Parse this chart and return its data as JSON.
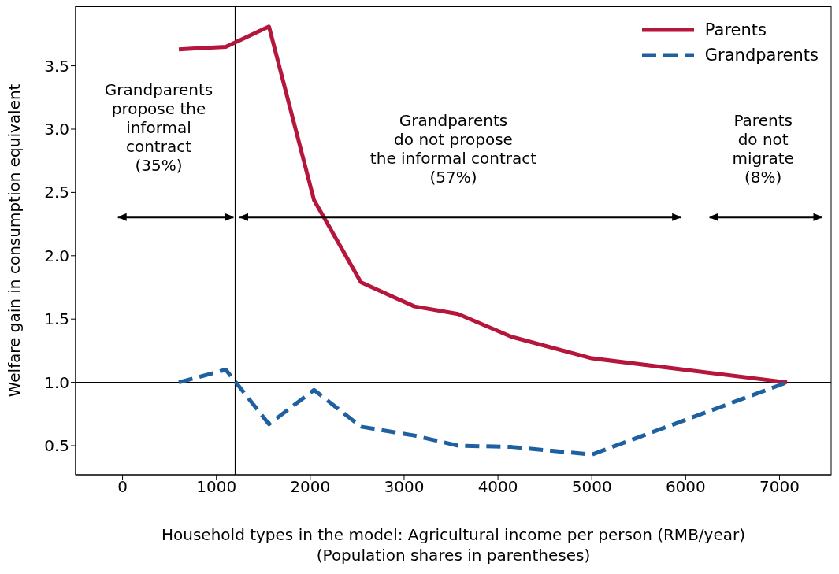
{
  "chart_data": {
    "type": "line",
    "xlabel": "Household types in the model: Agricultural income per person (RMB/year)\n(Population shares in parentheses)",
    "ylabel": "Welfare gain in consumption equivalent",
    "x": [
      600,
      1100,
      1560,
      2040,
      2540,
      3110,
      3575,
      4145,
      5000,
      7080
    ],
    "series": [
      {
        "name": "Parents",
        "color": "#b5173c",
        "line_style": "solid",
        "values": [
          3.63,
          3.65,
          3.81,
          2.44,
          1.79,
          1.6,
          1.54,
          1.36,
          1.19,
          1.0
        ]
      },
      {
        "name": "Grandparents",
        "color": "#1f61a0",
        "line_style": "dashed",
        "values": [
          1.0,
          1.1,
          0.67,
          0.94,
          0.65,
          0.58,
          0.5,
          0.49,
          0.43,
          1.0
        ]
      }
    ],
    "xlim": [
      -500,
      7550
    ],
    "xticks": [
      0,
      1000,
      2000,
      3000,
      4000,
      5000,
      6000,
      7000
    ],
    "ylim": [
      0.27,
      3.97
    ],
    "yticks": [
      0.5,
      {
        "value": 1,
        "label": "1.0"
      },
      1.5,
      {
        "value": 2,
        "label": "2.0"
      },
      2.5,
      {
        "value": 3,
        "label": "3.0"
      },
      3.5
    ],
    "ref_lines": [
      {
        "axis": "y",
        "value": 1,
        "color": "#000000"
      },
      {
        "axis": "x",
        "value": 1200,
        "color": "#000000"
      }
    ],
    "annotations": [
      "Grandparents\npropose the\ninformal\ncontract\n(35%)",
      "Grandparents\ndo not propose\nthe informal contract\n(57%)",
      "Parents\ndo not\nmigrate\n(8%)"
    ],
    "legend": "top right",
    "marker": "none"
  }
}
